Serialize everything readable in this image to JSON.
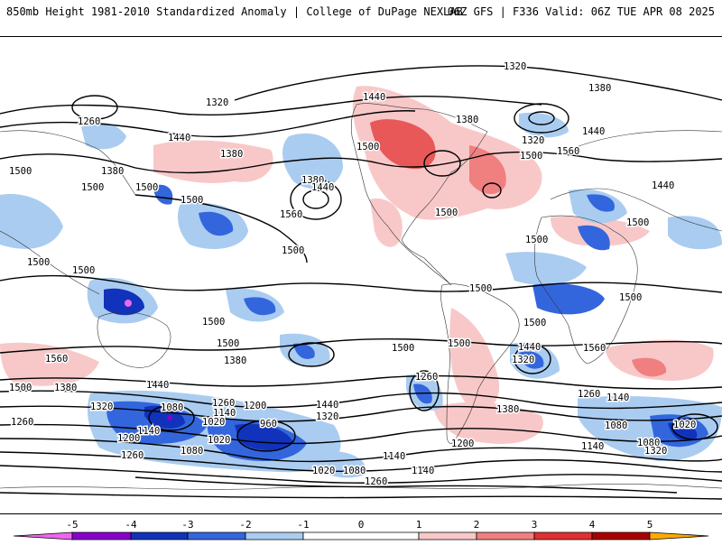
{
  "header": {
    "title_left": "850mb Height 1981-2010 Standardized Anomaly | College of DuPage NEXLAB",
    "title_right": "06Z GFS | F336 Valid: 06Z TUE APR 08 2025"
  },
  "colors": {
    "neg5": "#ee66ee",
    "neg4": "#8800cc",
    "neg3": "#1133bb",
    "neg2": "#3366dd",
    "neg1": "#aaccf0",
    "pos1": "#f8c8c8",
    "pos2": "#f08080",
    "pos3": "#e03030",
    "pos4": "#aa0000",
    "pos5": "#ffaa00"
  },
  "contour_labels": [
    "1320",
    "1380",
    "1440",
    "1500",
    "1560",
    "1260",
    "1200",
    "1140",
    "1080",
    "1020",
    "960"
  ],
  "colorbar": {
    "ticks": [
      "-5",
      "-4",
      "-3",
      "-2",
      "-1",
      "0",
      "1",
      "2",
      "3",
      "4",
      "5"
    ]
  }
}
